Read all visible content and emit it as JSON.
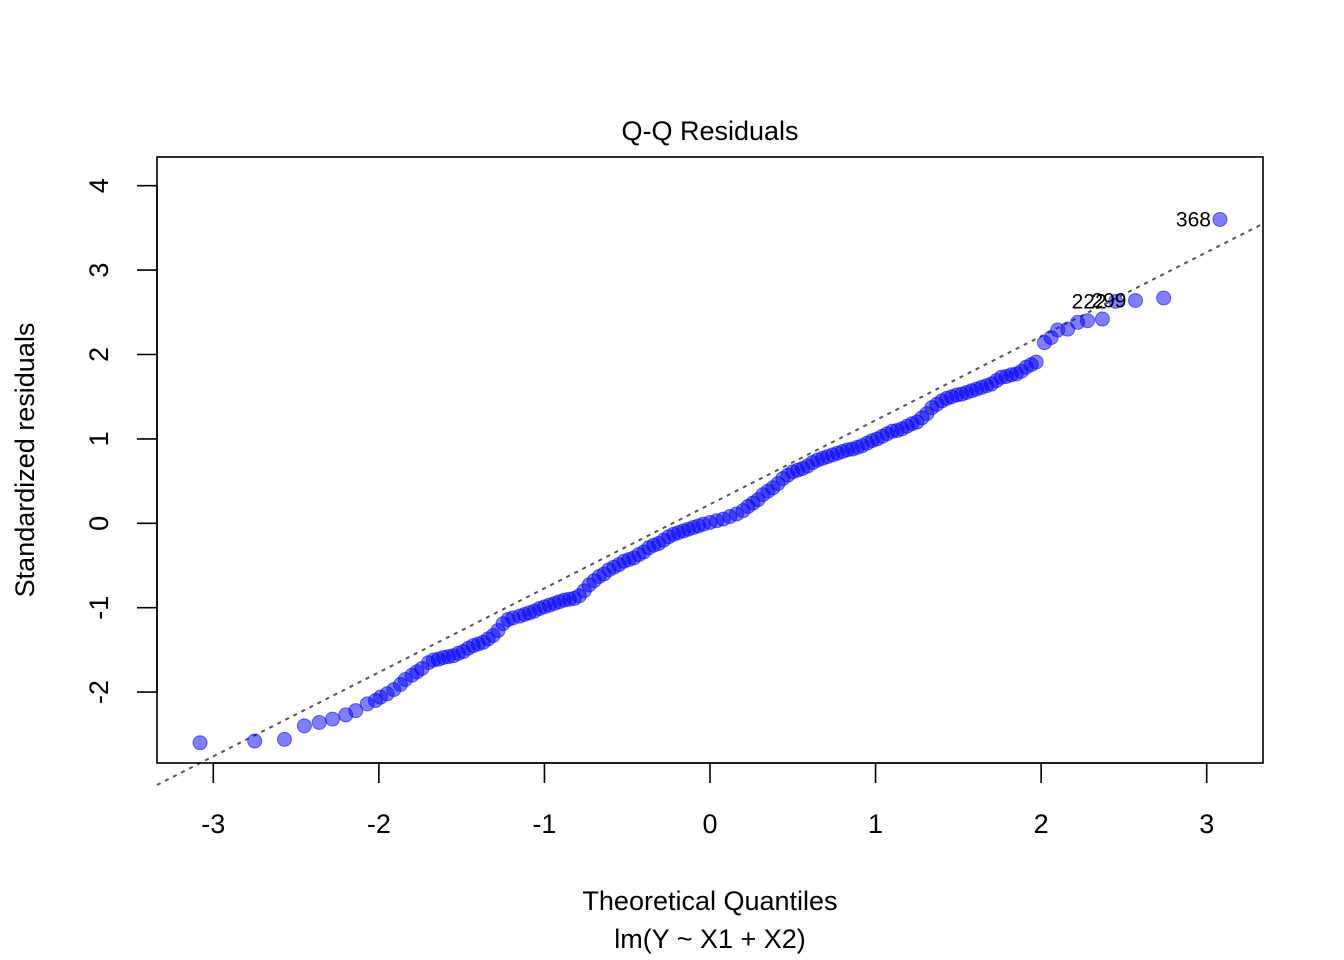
{
  "chart_data": {
    "type": "scatter",
    "title": "Q-Q Residuals",
    "xlabel": "Theoretical Quantiles",
    "subtitle": "lm(Y ~ X1 + X2)",
    "ylabel": "Standardized residuals",
    "xlim": [
      -3.34,
      3.34
    ],
    "ylim": [
      -2.84,
      4.34
    ],
    "xticks": [
      -3,
      -2,
      -1,
      0,
      1,
      2,
      3
    ],
    "yticks": [
      -2,
      -1,
      0,
      1,
      2,
      3,
      4
    ],
    "grid": false,
    "point_color": "#0000ff",
    "line_color": "#555555",
    "reference_line": {
      "x": [
        -3.34,
        3.34
      ],
      "y": [
        -3.1,
        3.55
      ],
      "style": "dashed"
    },
    "points": {
      "x": [
        -3.08,
        -2.75,
        -2.57,
        -2.45,
        -2.36,
        -2.28,
        -2.2,
        -2.14,
        -2.07,
        -2.02,
        -1.99,
        -1.95,
        -1.91,
        -1.87,
        -1.84,
        -1.8,
        -1.77,
        -1.74,
        -1.7,
        -1.67,
        -1.64,
        -1.61,
        -1.58,
        -1.55,
        -1.52,
        -1.49,
        -1.46,
        -1.43,
        -1.4,
        -1.37,
        -1.34,
        -1.31,
        -1.28,
        -1.25,
        -1.22,
        -1.19,
        -1.15,
        -1.12,
        -1.09,
        -1.06,
        -1.03,
        -1,
        -0.97,
        -0.94,
        -0.91,
        -0.88,
        -0.85,
        -0.82,
        -0.79,
        -0.76,
        -0.73,
        -0.7,
        -0.67,
        -0.64,
        -0.61,
        -0.58,
        -0.55,
        -0.52,
        -0.49,
        -0.46,
        -0.43,
        -0.4,
        -0.37,
        -0.34,
        -0.31,
        -0.28,
        -0.25,
        -0.22,
        -0.19,
        -0.16,
        -0.13,
        -0.1,
        -0.07,
        -0.04,
        0,
        0.04,
        0.08,
        0.12,
        0.16,
        0.2,
        0.23,
        0.26,
        0.29,
        0.32,
        0.35,
        0.38,
        0.41,
        0.44,
        0.47,
        0.5,
        0.53,
        0.56,
        0.59,
        0.62,
        0.65,
        0.68,
        0.71,
        0.74,
        0.77,
        0.8,
        0.83,
        0.86,
        0.89,
        0.92,
        0.95,
        0.98,
        1.01,
        1.04,
        1.07,
        1.1,
        1.13,
        1.16,
        1.19,
        1.22,
        1.25,
        1.28,
        1.31,
        1.34,
        1.37,
        1.4,
        1.43,
        1.46,
        1.49,
        1.52,
        1.55,
        1.58,
        1.61,
        1.64,
        1.67,
        1.7,
        1.73,
        1.76,
        1.79,
        1.82,
        1.85,
        1.88,
        1.91,
        1.94,
        1.97,
        2.02,
        2.06,
        2.1,
        2.16,
        2.22,
        2.28,
        2.37,
        2.45,
        2.57,
        2.74,
        3.08
      ],
      "y": [
        -2.6,
        -2.58,
        -2.56,
        -2.4,
        -2.36,
        -2.32,
        -2.27,
        -2.22,
        -2.14,
        -2.1,
        -2.06,
        -2.02,
        -1.97,
        -1.91,
        -1.85,
        -1.8,
        -1.76,
        -1.72,
        -1.65,
        -1.62,
        -1.61,
        -1.59,
        -1.58,
        -1.57,
        -1.54,
        -1.52,
        -1.48,
        -1.45,
        -1.43,
        -1.41,
        -1.37,
        -1.33,
        -1.27,
        -1.19,
        -1.14,
        -1.12,
        -1.1,
        -1.08,
        -1.06,
        -1.04,
        -1.01,
        -0.99,
        -0.97,
        -0.95,
        -0.93,
        -0.91,
        -0.9,
        -0.89,
        -0.86,
        -0.8,
        -0.73,
        -0.68,
        -0.63,
        -0.6,
        -0.55,
        -0.52,
        -0.49,
        -0.45,
        -0.43,
        -0.41,
        -0.37,
        -0.34,
        -0.29,
        -0.26,
        -0.24,
        -0.2,
        -0.16,
        -0.13,
        -0.11,
        -0.09,
        -0.07,
        -0.05,
        -0.03,
        -0.01,
        0.01,
        0.03,
        0.05,
        0.08,
        0.11,
        0.15,
        0.2,
        0.24,
        0.28,
        0.34,
        0.38,
        0.42,
        0.47,
        0.53,
        0.57,
        0.61,
        0.63,
        0.65,
        0.68,
        0.72,
        0.75,
        0.77,
        0.79,
        0.81,
        0.83,
        0.85,
        0.87,
        0.88,
        0.9,
        0.92,
        0.95,
        0.98,
        1,
        1.03,
        1.06,
        1.09,
        1.1,
        1.12,
        1.15,
        1.18,
        1.2,
        1.25,
        1.3,
        1.37,
        1.41,
        1.45,
        1.48,
        1.5,
        1.52,
        1.53,
        1.55,
        1.57,
        1.59,
        1.61,
        1.63,
        1.65,
        1.69,
        1.73,
        1.74,
        1.76,
        1.77,
        1.8,
        1.85,
        1.88,
        1.91,
        2.14,
        2.2,
        2.29,
        2.3,
        2.38,
        2.4,
        2.42,
        2.63,
        2.64,
        2.67,
        3.6
      ]
    },
    "annotations": [
      {
        "label": "368",
        "x": 3.08,
        "y": 3.6
      },
      {
        "label": "299",
        "x": 2.57,
        "y": 2.64
      },
      {
        "label": "222",
        "x": 2.45,
        "y": 2.63
      }
    ]
  }
}
